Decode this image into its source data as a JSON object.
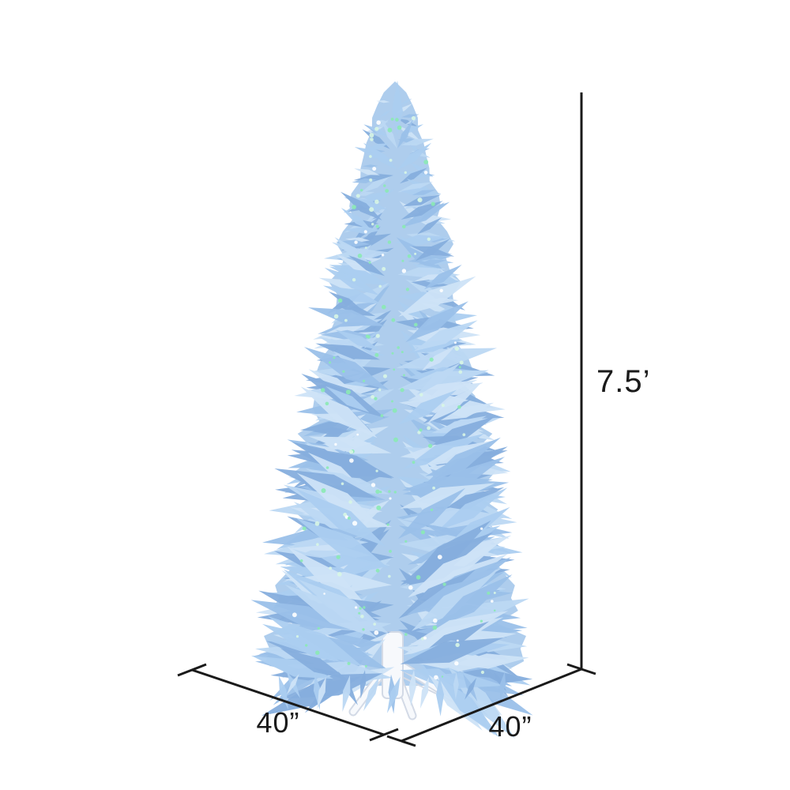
{
  "labels": {
    "height": "7.5’",
    "width_left": "40”",
    "width_right": "40”"
  },
  "colors": {
    "background": "#ffffff",
    "dimension": "#1a1a1a",
    "tree": [
      "#86aedd",
      "#9ac0e9",
      "#abcdf0",
      "#bcd8f3",
      "#cde3f7"
    ],
    "lights": [
      "#8beab4",
      "#d8f6e4",
      "#ffffff"
    ],
    "stand": "#f7f9fc",
    "stand_outline": "#d3dae6"
  }
}
